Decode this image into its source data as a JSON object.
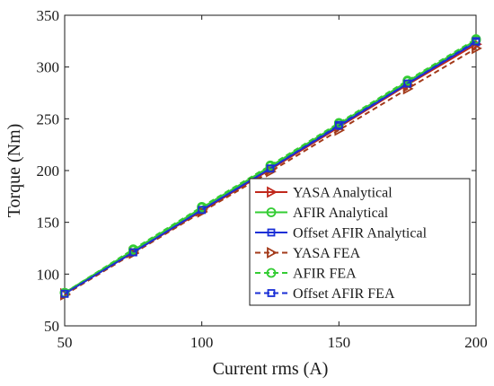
{
  "chart_data": {
    "type": "line",
    "xlabel": "Current rms (A)",
    "ylabel": "Torque (Nm)",
    "xlim": [
      50,
      200
    ],
    "ylim": [
      50,
      350
    ],
    "xticks": [
      50,
      100,
      150,
      200
    ],
    "yticks": [
      50,
      100,
      150,
      200,
      250,
      300,
      350
    ],
    "x": [
      50,
      75,
      100,
      125,
      150,
      175,
      200
    ],
    "grid": false,
    "legend_position": "lower-right",
    "series": [
      {
        "name": "YASA Analytical",
        "values": [
          81,
          121,
          161,
          201,
          242,
          283,
          322
        ],
        "color": "#c0281c",
        "dash": "solid",
        "marker": "triangle-right"
      },
      {
        "name": "AFIR Analytical",
        "values": [
          82,
          123,
          164,
          204,
          245,
          286,
          326
        ],
        "color": "#33cc33",
        "dash": "solid",
        "marker": "circle"
      },
      {
        "name": "Offset AFIR Analytical",
        "values": [
          81,
          121,
          162,
          202,
          243,
          284,
          324
        ],
        "color": "#1a2fd6",
        "dash": "solid",
        "marker": "square"
      },
      {
        "name": "YASA FEA",
        "values": [
          80,
          120,
          160,
          199,
          239,
          279,
          318
        ],
        "color": "#a33a1a",
        "dash": "dashed",
        "marker": "triangle-right"
      },
      {
        "name": "AFIR FEA",
        "values": [
          82,
          124,
          165,
          205,
          246,
          287,
          327
        ],
        "color": "#33cc33",
        "dash": "dashed",
        "marker": "circle"
      },
      {
        "name": "Offset AFIR FEA",
        "values": [
          81,
          121,
          162,
          202,
          244,
          284,
          325
        ],
        "color": "#1a2fd6",
        "dash": "dashed",
        "marker": "square"
      }
    ]
  }
}
